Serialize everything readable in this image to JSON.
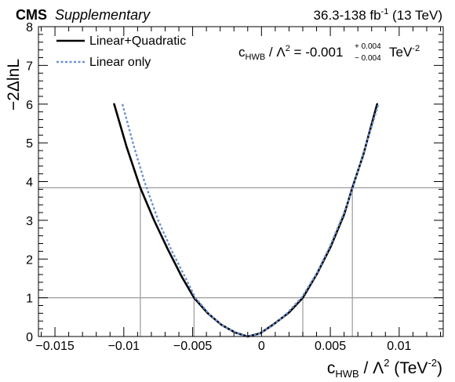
{
  "header": {
    "experiment": "CMS",
    "tag": "Supplementary",
    "lumi_value": "36.3-138 fb",
    "lumi_sup": "-1",
    "lumi_energy": " (13 TeV)"
  },
  "result": {
    "c_main": "c",
    "c_sub": "HWB",
    "lambda_text": " / Λ",
    "lambda_sup": "2",
    "central": " = -0.001",
    "err_up": "+ 0.004",
    "err_down": "− 0.004",
    "unit_main": " TeV",
    "unit_sup": "-2"
  },
  "axes": {
    "ylabel": "−2ΔlnL",
    "xlabel": {
      "c_main": "c",
      "c_sub": "HWB",
      "lambda_text": " / Λ",
      "lambda_sup": "2",
      "unit_open": " (TeV",
      "unit_sup": "-2",
      "unit_close": ")"
    }
  },
  "colors": {
    "linear_quadratic": "#000000",
    "linear_only": "#6e93d6",
    "reference_lines": "#9a9a9a"
  },
  "chart_data": {
    "type": "line",
    "xlim": [
      -0.0162,
      0.0132
    ],
    "ylim": [
      0,
      8
    ],
    "x_ticks": [
      -0.015,
      -0.01,
      -0.005,
      0,
      0.005,
      0.01
    ],
    "x_tick_labels": [
      "−0.015",
      "−0.01",
      "−0.005",
      "0",
      "0.005",
      "0.01"
    ],
    "y_ticks": [
      0,
      1,
      2,
      3,
      4,
      5,
      6,
      7,
      8
    ],
    "y_tick_labels": [
      "0",
      "1",
      "2",
      "3",
      "4",
      "5",
      "6",
      "7",
      "8"
    ],
    "legend_position": "top-left",
    "series": [
      {
        "name": "Linear+Quadratic",
        "style": "solid",
        "points": [
          [
            -0.0107,
            6.0
          ],
          [
            -0.0098,
            4.9
          ],
          [
            -0.0088,
            3.84
          ],
          [
            -0.0078,
            3.0
          ],
          [
            -0.0068,
            2.25
          ],
          [
            -0.0058,
            1.55
          ],
          [
            -0.0049,
            1.0
          ],
          [
            -0.0039,
            0.6
          ],
          [
            -0.0029,
            0.3
          ],
          [
            -0.0019,
            0.1
          ],
          [
            -0.001,
            0.0
          ],
          [
            -0.0001,
            0.08
          ],
          [
            0.0009,
            0.32
          ],
          [
            0.002,
            0.62
          ],
          [
            0.003,
            1.0
          ],
          [
            0.004,
            1.6
          ],
          [
            0.005,
            2.3
          ],
          [
            0.006,
            3.15
          ],
          [
            0.0066,
            3.84
          ],
          [
            0.0074,
            4.7
          ],
          [
            0.0084,
            6.0
          ]
        ]
      },
      {
        "name": "Linear only",
        "style": "dotted",
        "points": [
          [
            -0.0101,
            6.0
          ],
          [
            -0.0093,
            4.95
          ],
          [
            -0.0085,
            4.0
          ],
          [
            -0.0075,
            3.0
          ],
          [
            -0.0065,
            2.2
          ],
          [
            -0.0055,
            1.5
          ],
          [
            -0.0048,
            1.0
          ],
          [
            -0.0038,
            0.58
          ],
          [
            -0.0028,
            0.28
          ],
          [
            -0.0018,
            0.08
          ],
          [
            -0.001,
            0.0
          ],
          [
            -0.0002,
            0.06
          ],
          [
            0.0008,
            0.28
          ],
          [
            0.0018,
            0.58
          ],
          [
            0.0029,
            1.0
          ],
          [
            0.004,
            1.62
          ],
          [
            0.005,
            2.35
          ],
          [
            0.006,
            3.2
          ],
          [
            0.0066,
            3.8
          ],
          [
            0.0075,
            4.85
          ],
          [
            0.0085,
            6.0
          ]
        ]
      }
    ],
    "reference_levels": [
      1,
      3.84
    ],
    "interval_markers_x": [
      -0.0088,
      -0.0049,
      0.003,
      0.0066
    ]
  }
}
